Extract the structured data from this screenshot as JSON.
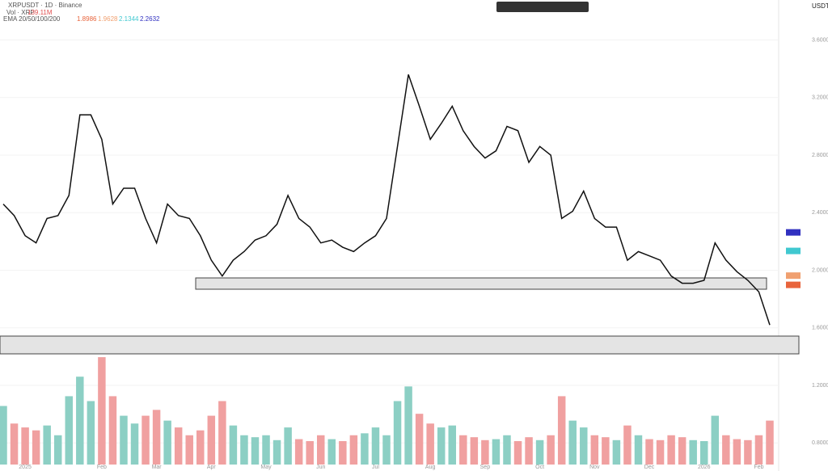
{
  "header": {
    "symbol": "XRPUSDT · 1D · Binance",
    "volume_label": "Vol · XRP",
    "volume_value": "139.11M"
  },
  "chart_data": [
    {
      "type": "line",
      "name": "price",
      "y_label": "USDT",
      "color": "#111111",
      "categories": [
        null,
        null,
        "2025",
        null,
        null,
        null,
        null,
        null,
        null,
        "Feb",
        null,
        null,
        null,
        null,
        "Mar",
        null,
        null,
        null,
        null,
        "Apr",
        null,
        null,
        null,
        null,
        "May",
        null,
        null,
        null,
        null,
        "Jun",
        null,
        null,
        null,
        null,
        "Jul",
        null,
        null,
        null,
        null,
        "Aug",
        null,
        null,
        null,
        null,
        "Sep",
        null,
        null,
        null,
        null,
        "Oct",
        null,
        null,
        null,
        null,
        "Nov",
        null,
        null,
        null,
        null,
        "Dec",
        null,
        null,
        null,
        null,
        "2026",
        null,
        null,
        null,
        null,
        "Feb",
        null
      ],
      "values": [
        2.46,
        2.38,
        2.24,
        2.19,
        2.36,
        2.38,
        2.52,
        3.08,
        3.08,
        2.91,
        2.46,
        2.57,
        2.57,
        2.36,
        2.19,
        2.46,
        2.38,
        2.36,
        2.24,
        2.07,
        1.96,
        2.07,
        2.13,
        2.21,
        2.24,
        2.32,
        2.52,
        2.36,
        2.3,
        2.19,
        2.21,
        2.16,
        2.13,
        2.19,
        2.24,
        2.36,
        2.86,
        3.36,
        3.14,
        2.91,
        3.02,
        3.14,
        2.97,
        2.86,
        2.78,
        2.83,
        3.0,
        2.97,
        2.75,
        2.86,
        2.8,
        2.36,
        2.41,
        2.55,
        2.36,
        2.3,
        2.3,
        2.07,
        2.13,
        2.1,
        2.07,
        1.96,
        1.91,
        1.91,
        1.93,
        2.19,
        2.07,
        1.99,
        1.93,
        1.85,
        1.62
      ],
      "ylim": [
        0.65,
        3.85
      ],
      "yticks": [
        {
          "value": 0.8,
          "label": "0.8000"
        },
        {
          "value": 1.2,
          "label": "1.2000"
        },
        {
          "value": 1.6,
          "label": "1.6000"
        },
        {
          "value": 2.0,
          "label": "2.0000"
        },
        {
          "value": 2.4,
          "label": "2.4000"
        },
        {
          "value": 2.8,
          "label": "2.8000"
        },
        {
          "value": 3.2,
          "label": "3.2000"
        },
        {
          "value": 3.6,
          "label": "3.6000"
        }
      ],
      "ema": {
        "name": "EMA 20/50/100/200",
        "values": [
          1.8986,
          1.9628,
          2.1344,
          2.2632
        ],
        "colors": [
          "#e8643c",
          "#f0a070",
          "#40c8d0",
          "#3030c0"
        ]
      }
    },
    {
      "type": "bar",
      "name": "volume",
      "up_color": "#8ccfc4",
      "down_color": "#f0a0a0",
      "values": [
        600,
        420,
        380,
        350,
        400,
        300,
        700,
        900,
        650,
        1100,
        700,
        500,
        420,
        500,
        560,
        450,
        380,
        300,
        350,
        500,
        650,
        400,
        300,
        280,
        300,
        250,
        380,
        260,
        240,
        300,
        260,
        240,
        300,
        320,
        380,
        300,
        650,
        800,
        520,
        420,
        380,
        400,
        300,
        280,
        250,
        260,
        300,
        240,
        280,
        250,
        300,
        700,
        450,
        380,
        300,
        280,
        250,
        400,
        300,
        260,
        250,
        300,
        280,
        250,
        240,
        500,
        300,
        260,
        250,
        300,
        450
      ],
      "ylim": [
        0,
        1200
      ]
    }
  ]
}
